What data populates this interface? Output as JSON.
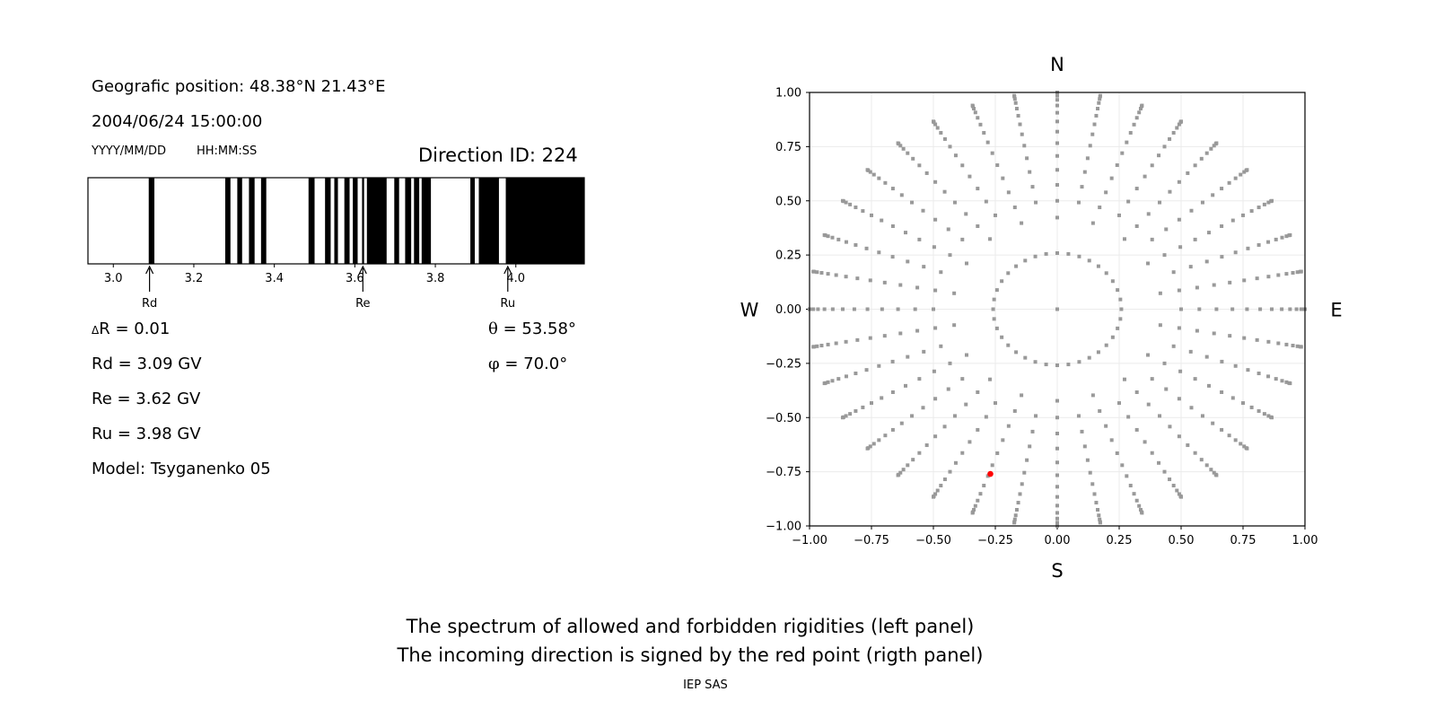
{
  "left_panel": {
    "position_label": "Geografic position: 48.38°N 21.43°E",
    "datetime": "2004/06/24 15:00:00",
    "date_format": "YYYY/MM/DD",
    "time_format": "HH:MM:SS",
    "direction_id": "Direction ID: 224",
    "delta_r_symbol": "Δ",
    "delta_r": "R = 0.01",
    "rd": "Rd = 3.09 GV",
    "re": "Re = 3.62 GV",
    "ru": "Ru = 3.98 GV",
    "model": "Model: Tsyganenko 05",
    "theta_symbol": "θ",
    "theta": " = 53.58°",
    "phi_symbol": "φ",
    "phi": " = 70.0°"
  },
  "chart_data": [
    {
      "type": "bar",
      "xlim": [
        2.937,
        4.17
      ],
      "xticks": [
        "3.0",
        "3.2",
        "3.4",
        "3.6",
        "3.8",
        "4.0"
      ],
      "xtick_values": [
        3.0,
        3.2,
        3.4,
        3.6,
        3.8,
        4.0
      ],
      "forbidden_color": "#000000",
      "allowed_color": "#ffffff",
      "forbidden_bands": [
        [
          3.088,
          3.102
        ],
        [
          3.278,
          3.291
        ],
        [
          3.308,
          3.32
        ],
        [
          3.337,
          3.351
        ],
        [
          3.367,
          3.38
        ],
        [
          3.485,
          3.5
        ],
        [
          3.526,
          3.54
        ],
        [
          3.549,
          3.558
        ],
        [
          3.574,
          3.587
        ],
        [
          3.595,
          3.607
        ],
        [
          3.618,
          3.623
        ],
        [
          3.63,
          3.679
        ],
        [
          3.698,
          3.71
        ],
        [
          3.725,
          3.74
        ],
        [
          3.747,
          3.76
        ],
        [
          3.766,
          3.789
        ],
        [
          3.887,
          3.898
        ],
        [
          3.908,
          3.958
        ],
        [
          3.975,
          4.17
        ]
      ],
      "markers": [
        {
          "label": "Rd",
          "value": 3.09
        },
        {
          "label": "Re",
          "value": 3.62
        },
        {
          "label": "Ru",
          "value": 3.98
        }
      ]
    },
    {
      "type": "scatter",
      "xlim": [
        -1,
        1
      ],
      "ylim": [
        -1,
        1
      ],
      "grid": true,
      "ticks": [
        "−1.00",
        "−0.75",
        "−0.50",
        "−0.25",
        "0.00",
        "0.25",
        "0.50",
        "0.75",
        "1.00"
      ],
      "tick_values": [
        -1,
        -0.75,
        -0.5,
        -0.25,
        0,
        0.25,
        0.5,
        0.75,
        1
      ],
      "compass": {
        "n": "N",
        "s": "S",
        "e": "E",
        "w": "W"
      },
      "point_color": "#999999",
      "grid_rings_zenith_deg": [
        0,
        15,
        25,
        30,
        35,
        40,
        45,
        50,
        55,
        60,
        65,
        70,
        75,
        80,
        85,
        90
      ],
      "ring_points": [
        1,
        36,
        18,
        36,
        36,
        36,
        36,
        36,
        36,
        36,
        36,
        36,
        36,
        36,
        36,
        36
      ],
      "incoming_direction": {
        "x": -0.27,
        "y": -0.76,
        "color": "#ff0000"
      }
    }
  ],
  "caption": {
    "line1": "The spectrum of allowed and forbidden rigidities (left panel)",
    "line2": "The incoming direction is signed by the red point (rigth panel)",
    "credit": "IEP SAS"
  }
}
